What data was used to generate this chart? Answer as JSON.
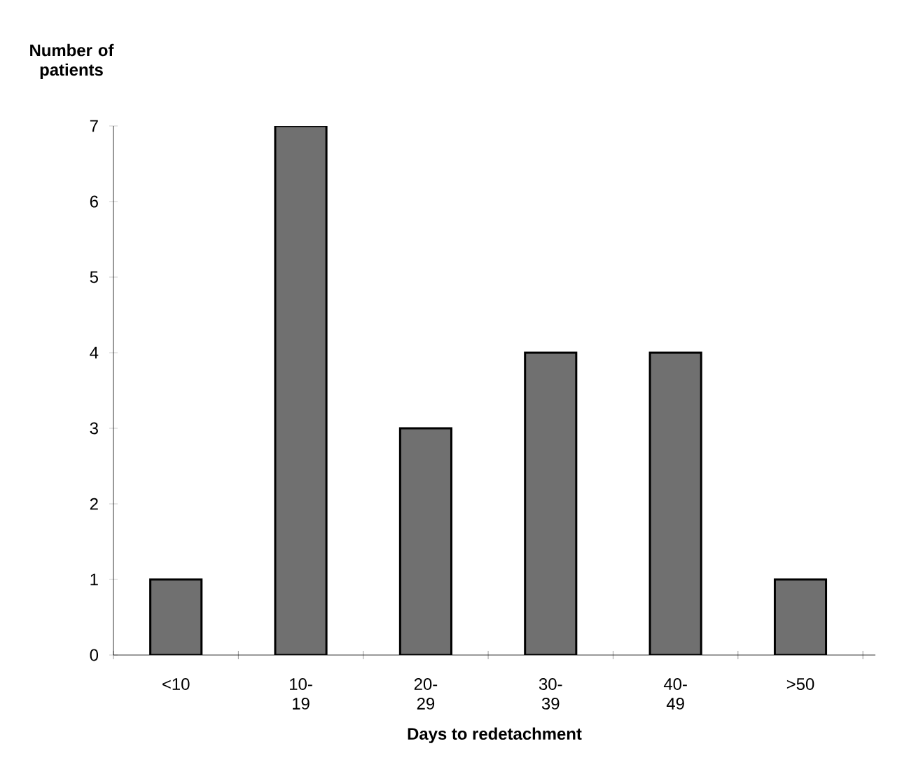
{
  "chart_data": {
    "type": "bar",
    "ylabel": "Number of patients",
    "xlabel": "Days to redetachment",
    "categories": [
      "<10",
      "10-19",
      "20-29",
      "30-39",
      "40-49",
      ">50"
    ],
    "values": [
      1,
      7,
      3,
      4,
      4,
      1
    ],
    "color": "#707070",
    "ylim": [
      0,
      7
    ],
    "yticks": [
      0,
      1,
      2,
      3,
      4,
      5,
      6,
      7
    ]
  }
}
